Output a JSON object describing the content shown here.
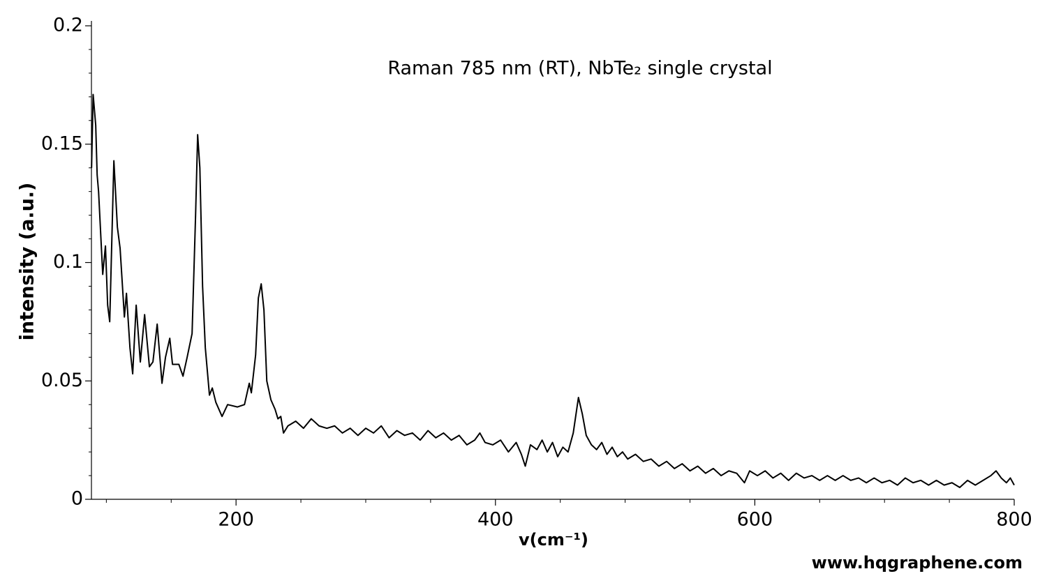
{
  "chart_data": {
    "type": "line",
    "title": "Raman 785 nm (RT), NbTe₂ single crystal",
    "xlabel": "v(cm⁻¹)",
    "ylabel": "intensity (a.u.)",
    "watermark": "www.hqgraphene.com",
    "color": "#000000",
    "xlim": [
      88.5,
      800
    ],
    "ylim": [
      0,
      0.2
    ],
    "xticks": [
      200,
      400,
      600,
      800
    ],
    "yticks": [
      0,
      0.05,
      0.1,
      0.15,
      0.2
    ],
    "xminorticks": [
      100,
      150,
      250,
      300,
      350,
      450,
      500,
      550,
      650,
      700,
      750
    ],
    "yminorticks": [
      0.01,
      0.02,
      0.03,
      0.04,
      0.06,
      0.07,
      0.08,
      0.09,
      0.11,
      0.12,
      0.13,
      0.14,
      0.16,
      0.17,
      0.18,
      0.19
    ],
    "x": [
      88.6,
      89.8,
      91.8,
      92.9,
      94,
      97.2,
      99.3,
      101,
      102.6,
      105.8,
      108.5,
      110.6,
      113.9,
      115.5,
      118.2,
      120.3,
      123,
      126.2,
      129.5,
      133.2,
      135.9,
      139.2,
      142.9,
      145.6,
      148.9,
      151,
      155.9,
      159.1,
      162.3,
      166.1,
      168.8,
      170.4,
      172.1,
      174.2,
      176.3,
      179.5,
      181.7,
      184.4,
      189.2,
      193.5,
      201.1,
      206.5,
      210.2,
      211.8,
      215.1,
      217.2,
      219.4,
      221.5,
      223.7,
      226.9,
      230.1,
      232.3,
      234.5,
      236.6,
      240,
      246,
      252,
      258,
      264,
      270,
      276,
      282,
      288,
      294,
      300,
      306,
      312,
      318,
      324,
      330,
      336,
      342,
      348,
      354,
      360,
      366,
      372,
      378,
      384,
      388,
      392,
      398,
      404,
      410,
      416,
      420,
      423,
      427,
      432,
      436,
      440,
      444,
      448,
      452,
      456,
      460,
      464,
      467,
      470,
      474,
      478,
      482,
      486,
      490,
      494,
      498,
      502,
      508,
      514,
      520,
      526,
      532,
      538,
      544,
      550,
      556,
      562,
      568,
      574,
      580,
      586,
      592,
      596,
      602,
      608,
      614,
      620,
      626,
      632,
      638,
      644,
      650,
      656,
      662,
      668,
      674,
      680,
      686,
      692,
      698,
      704,
      710,
      716,
      722,
      728,
      734,
      740,
      746,
      752,
      758,
      764,
      770,
      776,
      782,
      786,
      790,
      794,
      797,
      800
    ],
    "values": [
      0.14,
      0.171,
      0.158,
      0.137,
      0.13,
      0.095,
      0.107,
      0.082,
      0.075,
      0.143,
      0.115,
      0.106,
      0.077,
      0.087,
      0.064,
      0.053,
      0.082,
      0.058,
      0.078,
      0.056,
      0.058,
      0.074,
      0.049,
      0.06,
      0.068,
      0.057,
      0.057,
      0.052,
      0.06,
      0.07,
      0.12,
      0.154,
      0.14,
      0.09,
      0.064,
      0.044,
      0.047,
      0.041,
      0.035,
      0.04,
      0.039,
      0.04,
      0.049,
      0.045,
      0.061,
      0.085,
      0.091,
      0.08,
      0.05,
      0.042,
      0.038,
      0.034,
      0.035,
      0.028,
      0.031,
      0.033,
      0.03,
      0.034,
      0.031,
      0.03,
      0.031,
      0.028,
      0.03,
      0.027,
      0.03,
      0.028,
      0.031,
      0.026,
      0.029,
      0.027,
      0.028,
      0.025,
      0.029,
      0.026,
      0.028,
      0.025,
      0.027,
      0.023,
      0.025,
      0.028,
      0.024,
      0.023,
      0.025,
      0.02,
      0.024,
      0.019,
      0.014,
      0.023,
      0.021,
      0.025,
      0.02,
      0.024,
      0.018,
      0.022,
      0.02,
      0.028,
      0.043,
      0.036,
      0.027,
      0.023,
      0.021,
      0.024,
      0.019,
      0.022,
      0.018,
      0.02,
      0.017,
      0.019,
      0.016,
      0.017,
      0.014,
      0.016,
      0.013,
      0.015,
      0.012,
      0.014,
      0.011,
      0.013,
      0.01,
      0.012,
      0.011,
      0.007,
      0.012,
      0.01,
      0.012,
      0.009,
      0.011,
      0.008,
      0.011,
      0.009,
      0.01,
      0.008,
      0.01,
      0.008,
      0.01,
      0.008,
      0.009,
      0.007,
      0.009,
      0.007,
      0.008,
      0.006,
      0.009,
      0.007,
      0.008,
      0.006,
      0.008,
      0.006,
      0.007,
      0.005,
      0.008,
      0.006,
      0.008,
      0.01,
      0.012,
      0.009,
      0.007,
      0.009,
      0.006
    ]
  }
}
